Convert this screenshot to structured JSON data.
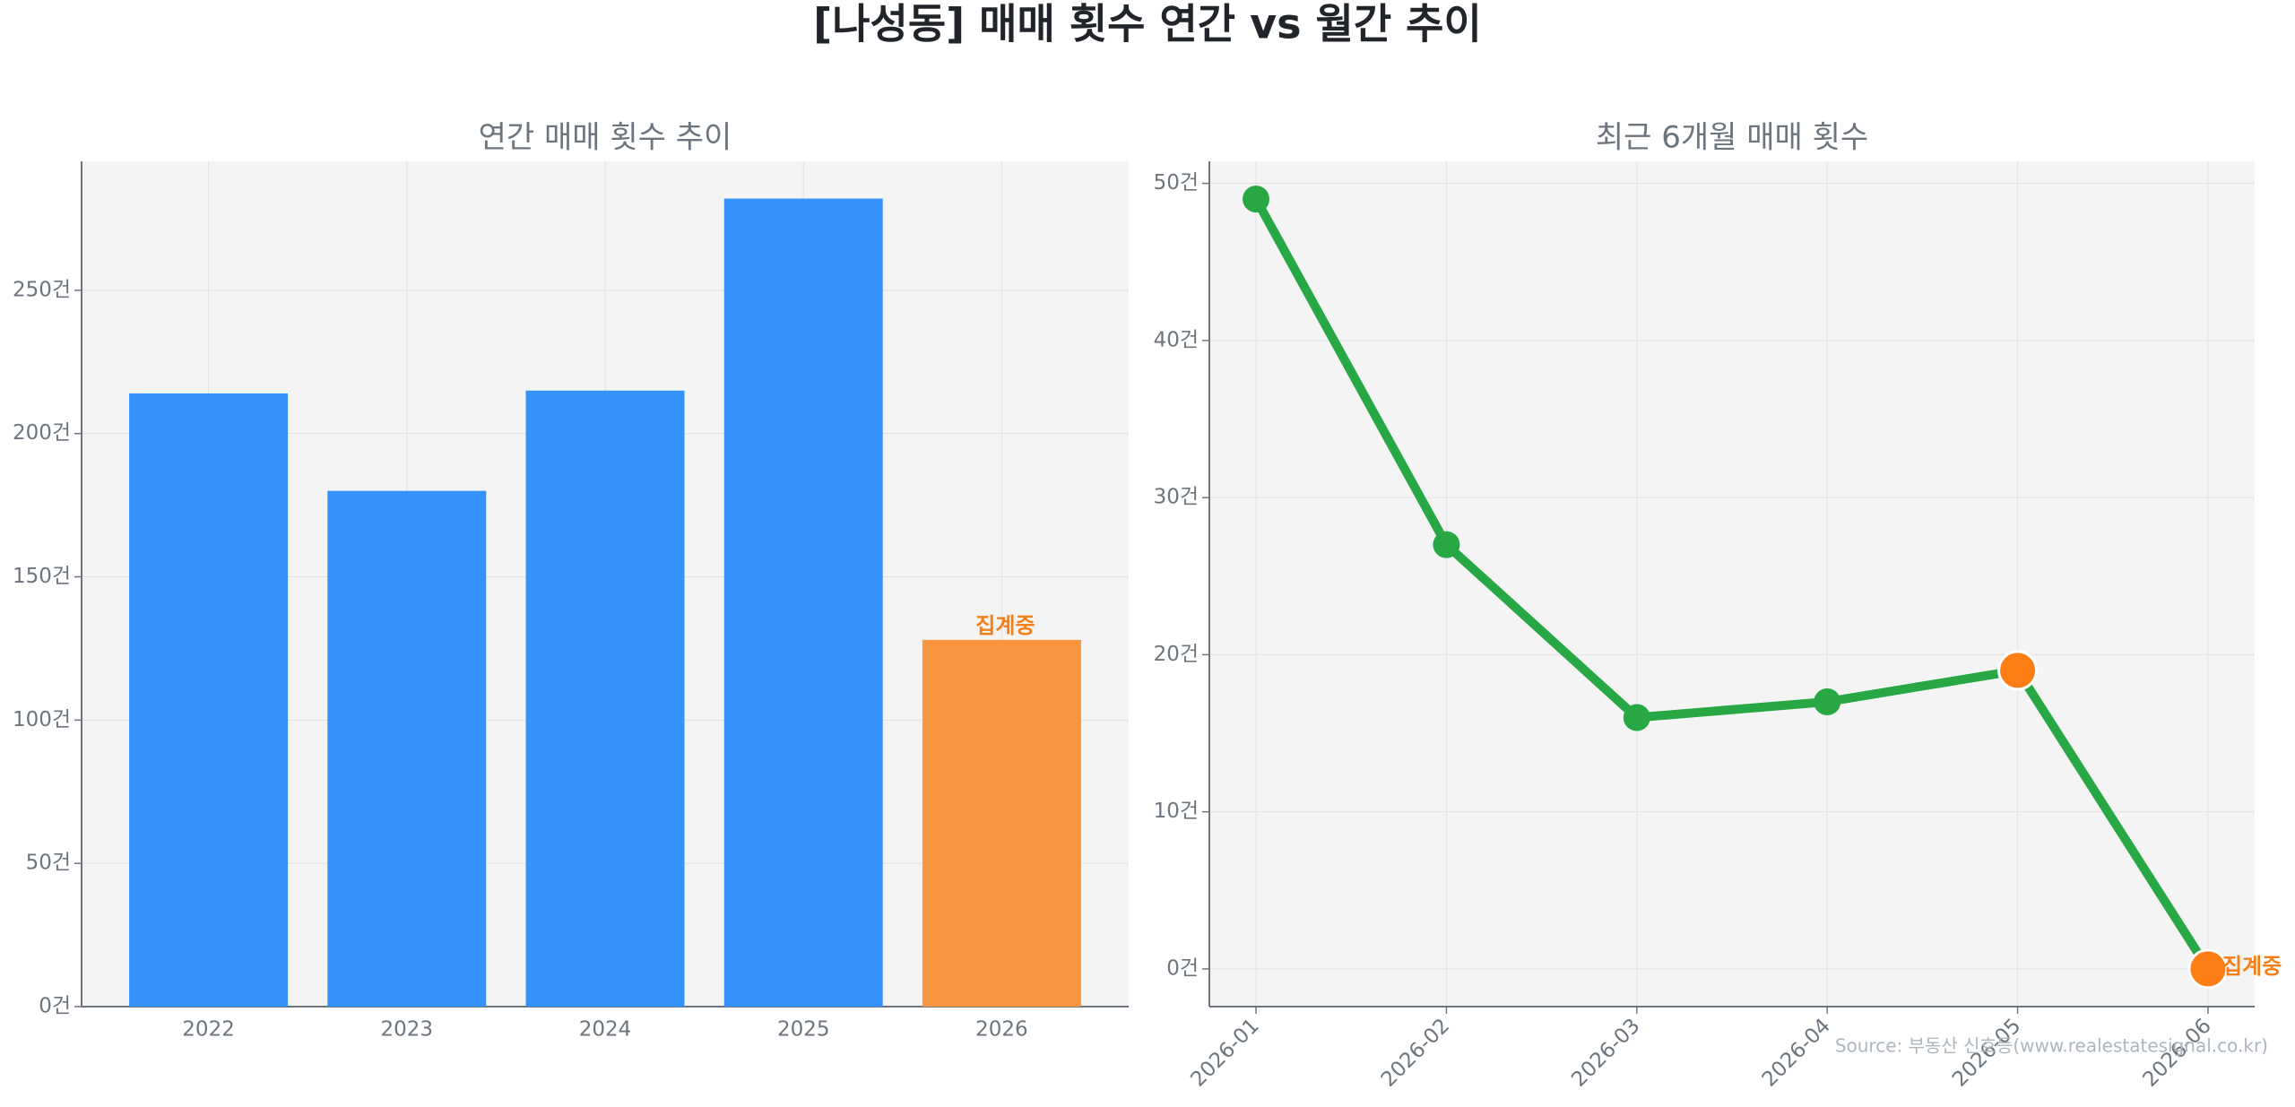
{
  "title": "[나성동] 매매 횟수 연간 vs 월간 추이",
  "source": "Source: 부동산 신호등(www.realestatesignal.co.kr)",
  "chart_data": [
    {
      "type": "bar",
      "title": "연간 매매 횟수 추이",
      "categories": [
        "2022",
        "2023",
        "2024",
        "2025",
        "2026"
      ],
      "values": [
        214,
        180,
        215,
        282,
        128
      ],
      "colors": [
        "#3392fb",
        "#3392fb",
        "#3392fb",
        "#3392fb",
        "#f9963f"
      ],
      "ylim": [
        0,
        295
      ],
      "yticks": [
        {
          "value": 0,
          "label": "0건"
        },
        {
          "value": 50,
          "label": "50건"
        },
        {
          "value": 100,
          "label": "100건"
        },
        {
          "value": 150,
          "label": "150건"
        },
        {
          "value": 200,
          "label": "200건"
        },
        {
          "value": 250,
          "label": "250건"
        }
      ],
      "grid": true,
      "annotation": {
        "text": "집계중",
        "category": "2026",
        "color": "#f57f17"
      }
    },
    {
      "type": "line",
      "title": "최근 6개월 매매 횟수",
      "categories": [
        "2026-01",
        "2026-02",
        "2026-03",
        "2026-04",
        "2026-05",
        "2026-06"
      ],
      "values": [
        49,
        27,
        16,
        17,
        19,
        0
      ],
      "color": "#28a745",
      "marker_colors": [
        "#28a745",
        "#28a745",
        "#28a745",
        "#28a745",
        "#fd7e14",
        "#fd7e14"
      ],
      "ylim": [
        -2.4,
        51.4
      ],
      "yticks": [
        {
          "value": 0,
          "label": "0건"
        },
        {
          "value": 10,
          "label": "10건"
        },
        {
          "value": 20,
          "label": "20건"
        },
        {
          "value": 30,
          "label": "30건"
        },
        {
          "value": 40,
          "label": "40건"
        },
        {
          "value": 50,
          "label": "50건"
        }
      ],
      "grid": true,
      "annotation": {
        "text": "집계중",
        "category": "2026-06",
        "color": "#f57f17"
      }
    }
  ]
}
